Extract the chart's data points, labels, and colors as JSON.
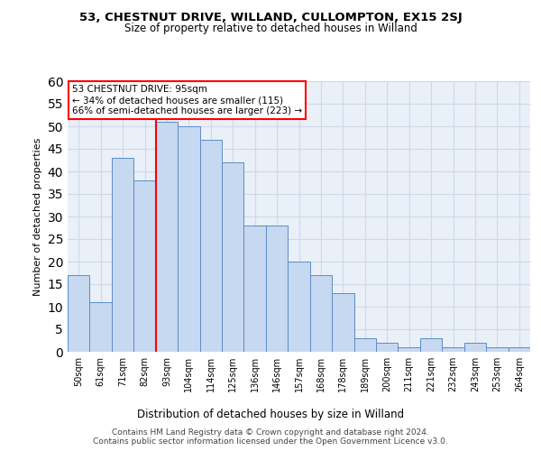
{
  "title1": "53, CHESTNUT DRIVE, WILLAND, CULLOMPTON, EX15 2SJ",
  "title2": "Size of property relative to detached houses in Willand",
  "xlabel": "Distribution of detached houses by size in Willand",
  "ylabel": "Number of detached properties",
  "categories": [
    "50sqm",
    "61sqm",
    "71sqm",
    "82sqm",
    "93sqm",
    "104sqm",
    "114sqm",
    "125sqm",
    "136sqm",
    "146sqm",
    "157sqm",
    "168sqm",
    "178sqm",
    "189sqm",
    "200sqm",
    "211sqm",
    "221sqm",
    "232sqm",
    "243sqm",
    "253sqm",
    "264sqm"
  ],
  "values": [
    17,
    11,
    43,
    38,
    51,
    50,
    47,
    42,
    28,
    28,
    20,
    17,
    13,
    3,
    2,
    1,
    3,
    1,
    2,
    1,
    1
  ],
  "bar_color": "#c6d9f0",
  "bar_edge_color": "#5b8cc8",
  "grid_color": "#d0d8e8",
  "annotation_box_text": "53 CHESTNUT DRIVE: 95sqm\n← 34% of detached houses are smaller (115)\n66% of semi-detached houses are larger (223) →",
  "annotation_box_color": "white",
  "annotation_box_edge_color": "red",
  "vline_color": "red",
  "vline_x": 3.5,
  "ylim": [
    0,
    60
  ],
  "yticks": [
    0,
    5,
    10,
    15,
    20,
    25,
    30,
    35,
    40,
    45,
    50,
    55,
    60
  ],
  "footnote": "Contains HM Land Registry data © Crown copyright and database right 2024.\nContains public sector information licensed under the Open Government Licence v3.0.",
  "bg_color": "#eaf0f8",
  "title1_fontsize": 9.5,
  "title2_fontsize": 8.5,
  "ylabel_fontsize": 8,
  "xlabel_fontsize": 8.5,
  "tick_fontsize": 7,
  "footnote_fontsize": 6.5,
  "ann_fontsize": 7.5
}
